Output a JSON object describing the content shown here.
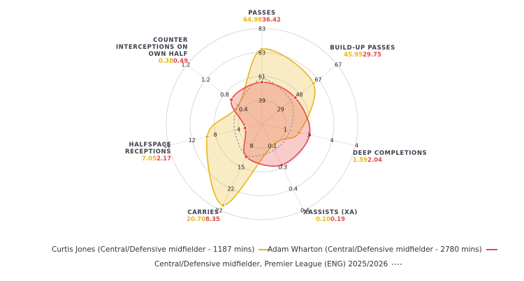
{
  "chart_data": {
    "type": "radar",
    "axes": [
      {
        "name": "PASSES",
        "ticks": [
          "39",
          "61",
          "83"
        ],
        "max": 83
      },
      {
        "name": "BUILD-UP PASSES",
        "ticks": [
          "29",
          "48",
          "67"
        ],
        "max": 67
      },
      {
        "name": "DEEP COMPLETIONS",
        "ticks": [
          "1",
          "3",
          "4"
        ],
        "max": 4
      },
      {
        "name": "XASSISTS (XA)",
        "ticks": [
          "0.1",
          "0.3",
          "0.4"
        ],
        "max": 0.4
      },
      {
        "name": "CARRIES",
        "ticks": [
          "8",
          "15",
          "22"
        ],
        "max": 22
      },
      {
        "name": "HALFSPACE RECEPTIONS",
        "ticks": [
          "4",
          "8",
          "12"
        ],
        "max": 12
      },
      {
        "name": "COUNTER INTERCEPTIONS ON OWN HALF",
        "ticks": [
          "0.4",
          "0.8",
          "1.2"
        ],
        "max": 1.2
      }
    ],
    "series": [
      {
        "name": "Curtis Jones (Central/Defensive midfielder - 1187 mins)",
        "color": "#e8b516",
        "values": [
          "64.98",
          "45.95",
          "1.59",
          "0.10",
          "20.70",
          "7.05",
          "0.38"
        ]
      },
      {
        "name": "Adam Wharton (Central/Defensive midfielder - 2780 mins)",
        "color": "#e84747",
        "values": [
          "36.42",
          "29.75",
          "2.04",
          "0.19",
          "8.35",
          "2.17",
          "0.49"
        ]
      },
      {
        "name": "Central/Defensive midfielder, Premier League (ENG) 2025/2026",
        "color": "#999999",
        "values": [
          39,
          26,
          1.2,
          0.12,
          8,
          3.5,
          0.38
        ]
      }
    ]
  },
  "legend": {
    "player_a": "Curtis Jones (Central/Defensive midfielder - 1187 mins)",
    "player_b": "Adam Wharton (Central/Defensive midfielder - 2780 mins)",
    "average": "Central/Defensive midfielder, Premier League (ENG) 2025/2026"
  },
  "colors": {
    "player_a": "#e8b516",
    "player_b": "#e84747",
    "average": "#999999",
    "grid": "#d9d9d9"
  }
}
